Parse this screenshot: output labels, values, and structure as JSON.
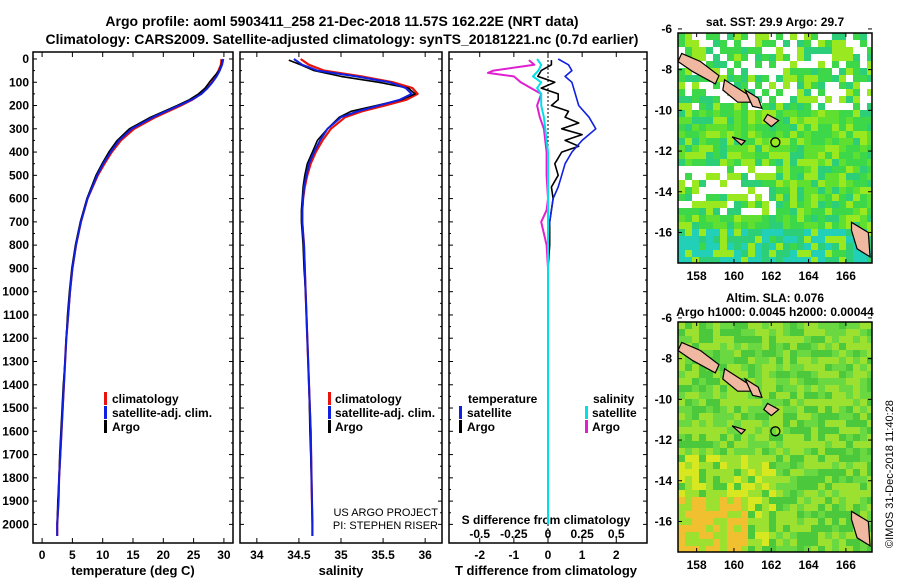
{
  "titles": {
    "line1": "Argo profile: aoml 5903411_258 21-Dec-2018 11.57S 162.22E (NRT data)",
    "line2": "Climatology: CARS2009. Satellite-adjusted climatology: synTS_20181221.nc (0.7d earlier)"
  },
  "colors": {
    "climatology": "#e8140c",
    "satellite": "#1020e0",
    "argo": "#000000",
    "sat_salinity": "#00e0e8",
    "argo_salinity": "#e020d0"
  },
  "depth_ticks": [
    "0",
    "100",
    "200",
    "300",
    "400",
    "500",
    "600",
    "700",
    "800",
    "900",
    "1000",
    "1100",
    "1200",
    "1300",
    "1400",
    "1500",
    "1600",
    "1700",
    "1800",
    "1900",
    "2000"
  ],
  "panels": {
    "temperature": {
      "xlabel": "temperature (deg C)",
      "ticks": [
        "0",
        "5",
        "10",
        "15",
        "20",
        "25",
        "30"
      ],
      "legend": [
        "climatology",
        "satellite-adj. clim.",
        "Argo"
      ]
    },
    "salinity": {
      "xlabel": "salinity",
      "ticks": [
        "34",
        "34.5",
        "35",
        "35.5",
        "36"
      ],
      "legend": [
        "climatology",
        "satellite-adj. clim.",
        "Argo"
      ],
      "credit1": "US ARGO PROJECT",
      "credit2": "PI: STEPHEN RISER"
    },
    "difference": {
      "xlabel": "T difference from climatology",
      "ticks": [
        "-2",
        "-1",
        "0",
        "1",
        "2"
      ],
      "s_label": "S difference from climatology",
      "s_ticks": [
        "-0.5",
        "-0.25",
        "0",
        "0.25",
        "0.5"
      ],
      "legend_t_title": "temperature",
      "legend_s_title": "salinity",
      "legend_t": [
        "satellite",
        "Argo"
      ],
      "legend_s": [
        "satellite",
        "Argo"
      ]
    }
  },
  "maps": {
    "sst": {
      "title": "sat. SST: 29.9 Argo: 29.7",
      "lat_ticks": [
        "-6",
        "-8",
        "-10",
        "-12",
        "-14",
        "-16"
      ],
      "lon_ticks": [
        "158",
        "160",
        "162",
        "164",
        "166"
      ]
    },
    "sla": {
      "title1": "Altim. SLA: 0.076",
      "title2": "Argo h1000: 0.0045 h2000: 0.00044",
      "lat_ticks": [
        "-6",
        "-8",
        "-10",
        "-12",
        "-14",
        "-16"
      ],
      "lon_ticks": [
        "158",
        "160",
        "162",
        "164",
        "166"
      ]
    }
  },
  "stamp": "©IMOS 31-Dec-2018 11:40:28",
  "chart_data": [
    {
      "type": "line",
      "title": "",
      "xlabel": "temperature (deg C)",
      "ylabel": "",
      "xlim": [
        -1.5,
        31.5
      ],
      "ylim": [
        2080,
        -30
      ],
      "series": [
        {
          "name": "climatology",
          "depth": [
            0,
            25,
            50,
            75,
            100,
            125,
            150,
            175,
            200,
            250,
            300,
            350,
            400,
            450,
            500,
            600,
            700,
            800,
            900,
            1000,
            1100,
            1200,
            1300,
            1400,
            1500,
            1600,
            1700,
            1800,
            1900,
            2000,
            2050
          ],
          "values": [
            29.6,
            29.5,
            29.1,
            28.6,
            28.0,
            27.2,
            26.2,
            24.8,
            22.9,
            18.7,
            15.2,
            13.0,
            11.5,
            10.3,
            9.2,
            7.5,
            6.4,
            5.6,
            5.0,
            4.6,
            4.3,
            4.0,
            3.8,
            3.6,
            3.4,
            3.2,
            3.0,
            2.8,
            2.7,
            2.5,
            2.5
          ]
        },
        {
          "name": "satellite-adj. clim.",
          "depth": [
            0,
            25,
            50,
            75,
            100,
            125,
            150,
            175,
            200,
            250,
            300,
            350,
            400,
            450,
            500,
            600,
            700,
            800,
            900,
            1000,
            1100,
            1200,
            1300,
            1400,
            1500,
            1600,
            1700,
            1800,
            1900,
            2000,
            2050
          ],
          "values": [
            29.9,
            29.7,
            29.3,
            28.8,
            28.1,
            27.3,
            26.3,
            24.7,
            22.6,
            18.3,
            14.8,
            12.7,
            11.3,
            10.1,
            9.1,
            7.5,
            6.4,
            5.6,
            5.0,
            4.6,
            4.3,
            4.0,
            3.8,
            3.6,
            3.4,
            3.2,
            3.0,
            2.8,
            2.7,
            2.5,
            2.5
          ]
        },
        {
          "name": "Argo",
          "depth": [
            5,
            25,
            50,
            75,
            100,
            125,
            150,
            175,
            200,
            250,
            300,
            350,
            400,
            450,
            500,
            600,
            700,
            800,
            900,
            1000,
            1100,
            1200,
            1300,
            1400,
            1500,
            1600,
            1700,
            1800,
            1900,
            2000
          ],
          "values": [
            29.7,
            29.6,
            29.2,
            28.4,
            27.6,
            26.9,
            25.8,
            24.3,
            22.3,
            17.9,
            14.4,
            12.4,
            11.0,
            9.9,
            8.9,
            7.4,
            6.3,
            5.5,
            4.9,
            4.5,
            4.2,
            4.0,
            3.8,
            3.5,
            3.3,
            3.1,
            2.9,
            2.8,
            2.6,
            2.5
          ]
        }
      ]
    },
    {
      "type": "line",
      "title": "",
      "xlabel": "salinity",
      "ylabel": "",
      "xlim": [
        33.8,
        36.2
      ],
      "ylim": [
        2080,
        -30
      ],
      "series": [
        {
          "name": "climatology",
          "depth": [
            0,
            25,
            50,
            75,
            100,
            125,
            150,
            175,
            200,
            225,
            250,
            300,
            350,
            400,
            450,
            500,
            550,
            600,
            650,
            700,
            750,
            800,
            900,
            1000,
            1200,
            1400,
            1600,
            1800,
            2000,
            2050
          ],
          "values": [
            34.52,
            34.62,
            34.8,
            35.25,
            35.62,
            35.85,
            35.91,
            35.78,
            35.52,
            35.25,
            35.05,
            34.88,
            34.78,
            34.7,
            34.64,
            34.6,
            34.57,
            34.55,
            34.54,
            34.54,
            34.55,
            34.56,
            34.57,
            34.58,
            34.6,
            34.62,
            34.64,
            34.65,
            34.66,
            34.66
          ]
        },
        {
          "name": "satellite-adj. clim.",
          "depth": [
            0,
            25,
            50,
            75,
            100,
            125,
            150,
            175,
            200,
            225,
            250,
            300,
            350,
            400,
            450,
            500,
            550,
            600,
            650,
            700,
            750,
            800,
            900,
            1000,
            1200,
            1400,
            1600,
            1800,
            2000,
            2050
          ],
          "values": [
            34.44,
            34.54,
            34.72,
            35.18,
            35.58,
            35.77,
            35.84,
            35.7,
            35.45,
            35.2,
            35.0,
            34.84,
            34.75,
            34.68,
            34.62,
            34.59,
            34.56,
            34.55,
            34.54,
            34.54,
            34.55,
            34.56,
            34.57,
            34.58,
            34.6,
            34.62,
            34.64,
            34.65,
            34.66,
            34.66
          ]
        },
        {
          "name": "Argo",
          "depth": [
            5,
            25,
            50,
            75,
            100,
            125,
            150,
            175,
            200,
            225,
            250,
            300,
            350,
            400,
            450,
            500,
            550,
            600,
            650,
            700,
            750,
            800,
            900,
            1000,
            1200,
            1400,
            1600,
            1800,
            2000
          ],
          "values": [
            34.38,
            34.52,
            34.68,
            35.0,
            35.45,
            35.8,
            35.88,
            35.72,
            35.42,
            35.12,
            34.98,
            34.84,
            34.72,
            34.66,
            34.6,
            34.57,
            34.55,
            34.54,
            34.53,
            34.53,
            34.54,
            34.55,
            34.56,
            34.58,
            34.6,
            34.62,
            34.63,
            34.65,
            34.66
          ]
        }
      ]
    },
    {
      "type": "line",
      "title": "",
      "xlabel": "T difference from climatology",
      "ylabel": "",
      "xlim": [
        -2.9,
        2.9
      ],
      "ylim": [
        2080,
        -30
      ],
      "series": [
        {
          "name": "temperature satellite",
          "depth": [
            0,
            25,
            50,
            75,
            100,
            150,
            200,
            250,
            300,
            350,
            400,
            450,
            500,
            550,
            600,
            700,
            800,
            1000,
            1200,
            1500,
            2000
          ],
          "values": [
            0.3,
            0.6,
            0.7,
            0.5,
            0.7,
            0.8,
            0.9,
            1.2,
            1.4,
            1.0,
            0.7,
            0.5,
            0.4,
            0.3,
            0.15,
            0.05,
            0.0,
            0.0,
            0.0,
            0.0,
            0.0
          ]
        },
        {
          "name": "temperature Argo",
          "depth": [
            5,
            25,
            50,
            75,
            100,
            125,
            150,
            175,
            200,
            225,
            250,
            275,
            300,
            325,
            350,
            375,
            400,
            450,
            500,
            550,
            600,
            700,
            800,
            900,
            1000,
            1500,
            2000
          ],
          "values": [
            0.1,
            0.1,
            -0.2,
            -0.3,
            0.2,
            -0.2,
            0.3,
            0.3,
            0.1,
            0.6,
            0.5,
            0.9,
            0.4,
            1.0,
            0.5,
            0.9,
            0.4,
            0.2,
            0.3,
            0.1,
            0.15,
            0.05,
            0.05,
            0.0,
            0.0,
            0.0,
            0.0
          ]
        }
      ]
    },
    {
      "type": "line",
      "title": "",
      "xlabel": "S difference from climatology",
      "ylabel": "",
      "xlim": [
        -0.725,
        0.725
      ],
      "ylim": [
        2080,
        -30
      ],
      "series": [
        {
          "name": "salinity satellite",
          "depth": [
            0,
            25,
            50,
            75,
            100,
            125,
            150,
            200,
            250,
            300,
            350,
            400,
            450,
            500,
            600,
            700,
            800,
            1000,
            1500,
            2000
          ],
          "values": [
            -0.08,
            -0.05,
            -0.07,
            -0.11,
            -0.05,
            -0.08,
            -0.05,
            -0.05,
            -0.03,
            -0.02,
            -0.01,
            0.0,
            0.0,
            0.0,
            0.0,
            0.0,
            0.0,
            0.0,
            0.0,
            0.0
          ]
        },
        {
          "name": "salinity Argo",
          "depth": [
            5,
            25,
            50,
            60,
            75,
            100,
            150,
            200,
            250,
            300,
            400,
            500,
            600,
            650,
            700,
            750,
            800,
            900,
            1000,
            1200,
            1500,
            2000
          ],
          "values": [
            -0.14,
            -0.1,
            -0.4,
            -0.44,
            -0.25,
            -0.2,
            -0.05,
            -0.08,
            -0.06,
            -0.03,
            -0.01,
            -0.01,
            0.0,
            -0.01,
            -0.05,
            -0.03,
            -0.01,
            0.0,
            0.0,
            0.0,
            0.0,
            0.0
          ]
        }
      ]
    }
  ]
}
